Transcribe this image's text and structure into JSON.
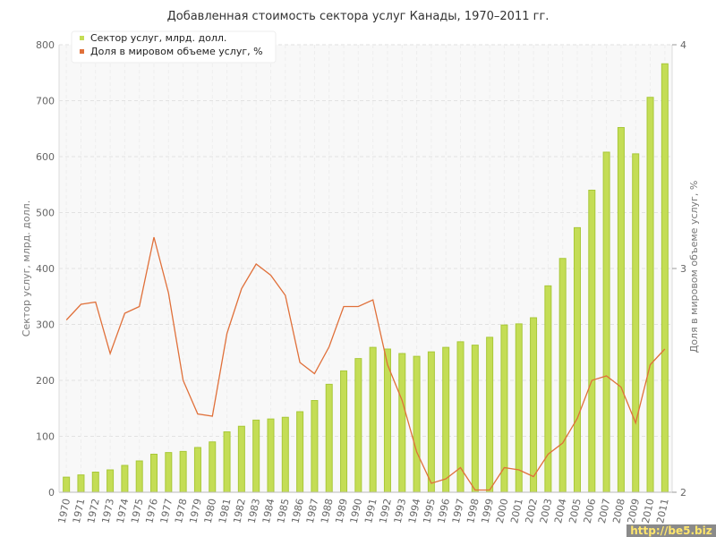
{
  "chart_data": {
    "type": "bar",
    "title": "Добавленная стоимость сектора услуг Канады, 1970–2011 гг.",
    "xlabel": "",
    "ylabel": "Сектор услуг, млрд. долл.",
    "y2label": "Доля в мировом объеме услуг, %",
    "ylim": [
      0,
      800
    ],
    "y2lim": [
      2,
      4
    ],
    "yticks": [
      0,
      100,
      200,
      300,
      400,
      500,
      600,
      700,
      800
    ],
    "y2ticks": [
      2,
      3,
      4
    ],
    "grid": true,
    "legend_position": "top-left",
    "categories": [
      "1970",
      "1971",
      "1972",
      "1973",
      "1974",
      "1975",
      "1976",
      "1977",
      "1978",
      "1979",
      "1980",
      "1981",
      "1982",
      "1983",
      "1984",
      "1985",
      "1986",
      "1987",
      "1988",
      "1989",
      "1990",
      "1991",
      "1992",
      "1993",
      "1994",
      "1995",
      "1996",
      "1997",
      "1998",
      "1999",
      "2000",
      "2001",
      "2002",
      "2003",
      "2004",
      "2005",
      "2006",
      "2007",
      "2008",
      "2009",
      "2010",
      "2011"
    ],
    "series": [
      {
        "name": "Сектор услуг, млрд. долл.",
        "type": "bar",
        "axis": "left",
        "color": "#c4dd55",
        "values": [
          27,
          31,
          36,
          40,
          48,
          56,
          68,
          71,
          73,
          80,
          90,
          108,
          118,
          129,
          131,
          134,
          144,
          164,
          193,
          217,
          239,
          259,
          256,
          248,
          243,
          251,
          259,
          269,
          263,
          277,
          299,
          301,
          312,
          369,
          418,
          473,
          540,
          608,
          652,
          605,
          706,
          766
        ]
      },
      {
        "name": "Доля в мировом объеме услуг, %",
        "type": "line",
        "axis": "right",
        "color": "#e0703a",
        "values": [
          2.77,
          2.84,
          2.85,
          2.62,
          2.8,
          2.83,
          3.14,
          2.89,
          2.5,
          2.35,
          2.34,
          2.71,
          2.91,
          3.02,
          2.97,
          2.88,
          2.58,
          2.53,
          2.65,
          2.83,
          2.83,
          2.86,
          2.57,
          2.41,
          2.18,
          2.04,
          2.06,
          2.11,
          2.01,
          2.01,
          2.11,
          2.1,
          2.07,
          2.17,
          2.22,
          2.33,
          2.5,
          2.52,
          2.47,
          2.31,
          2.57,
          2.64
        ]
      }
    ]
  },
  "watermark": "http://be5.biz"
}
